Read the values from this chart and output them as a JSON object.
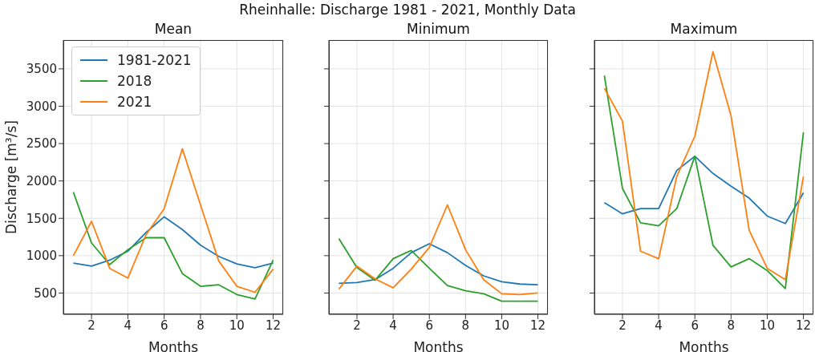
{
  "chart_data": [
    {
      "type": "line",
      "title": "Mean",
      "annotations": [
        "Rheinhalle: Discharge 1981 - 2021, Monthly Data"
      ],
      "xlabel": "Months",
      "ylabel": "Discharge [m³/s]",
      "x": [
        1,
        2,
        3,
        4,
        5,
        6,
        7,
        8,
        9,
        10,
        11,
        12
      ],
      "xlim": [
        0.45,
        12.55
      ],
      "xticks": [
        2,
        4,
        6,
        8,
        10,
        12
      ],
      "ylim": [
        215,
        3885
      ],
      "yticks": [
        500,
        1000,
        1500,
        2000,
        2500,
        3000,
        3500
      ],
      "grid": true,
      "legend": "top left",
      "line_style": "solid",
      "series": [
        {
          "name": "1981-2021",
          "color": "#1f77b4",
          "values": [
            900,
            860,
            940,
            1060,
            1310,
            1520,
            1350,
            1140,
            990,
            890,
            840,
            900
          ]
        },
        {
          "name": "2018",
          "color": "#2ca02c",
          "values": [
            1850,
            1170,
            880,
            1080,
            1240,
            1240,
            760,
            590,
            610,
            480,
            420,
            940
          ]
        },
        {
          "name": "2021",
          "color": "#ff7f0e",
          "values": [
            1000,
            1460,
            830,
            700,
            1280,
            1630,
            2430,
            1680,
            930,
            590,
            510,
            820
          ]
        }
      ]
    },
    {
      "type": "line",
      "title": "Minimum",
      "xlabel": "Months",
      "x": [
        1,
        2,
        3,
        4,
        5,
        6,
        7,
        8,
        9,
        10,
        11,
        12
      ],
      "xlim": [
        0.45,
        12.55
      ],
      "xticks": [
        2,
        4,
        6,
        8,
        10,
        12
      ],
      "ylim": [
        215,
        3885
      ],
      "yticks": [
        500,
        1000,
        1500,
        2000,
        2500,
        3000,
        3500
      ],
      "grid": true,
      "tick_labels": "x",
      "line_style": "solid",
      "series": [
        {
          "color": "#1f77b4",
          "values": [
            630,
            640,
            680,
            830,
            1040,
            1160,
            1040,
            870,
            730,
            650,
            620,
            610
          ]
        },
        {
          "color": "#2ca02c",
          "values": [
            1230,
            840,
            670,
            960,
            1070,
            830,
            600,
            530,
            490,
            390,
            390,
            390
          ]
        },
        {
          "color": "#ff7f0e",
          "values": [
            550,
            860,
            690,
            570,
            820,
            1110,
            1680,
            1080,
            680,
            490,
            480,
            500
          ]
        }
      ]
    },
    {
      "type": "line",
      "title": "Maximum",
      "xlabel": "Months",
      "x": [
        1,
        2,
        3,
        4,
        5,
        6,
        7,
        8,
        9,
        10,
        11,
        12
      ],
      "xlim": [
        0.45,
        12.55
      ],
      "xticks": [
        2,
        4,
        6,
        8,
        10,
        12
      ],
      "ylim": [
        215,
        3885
      ],
      "yticks": [
        500,
        1000,
        1500,
        2000,
        2500,
        3000,
        3500
      ],
      "grid": true,
      "tick_labels": "x",
      "line_style": "solid",
      "series": [
        {
          "color": "#1f77b4",
          "values": [
            1710,
            1560,
            1630,
            1630,
            2140,
            2330,
            2100,
            1930,
            1770,
            1530,
            1430,
            1840
          ]
        },
        {
          "color": "#2ca02c",
          "values": [
            3410,
            1900,
            1440,
            1400,
            1630,
            2330,
            1140,
            850,
            960,
            800,
            560,
            2650
          ]
        },
        {
          "color": "#ff7f0e",
          "values": [
            3240,
            2800,
            1060,
            960,
            2060,
            2600,
            3730,
            2870,
            1340,
            830,
            680,
            2060
          ]
        }
      ]
    }
  ]
}
